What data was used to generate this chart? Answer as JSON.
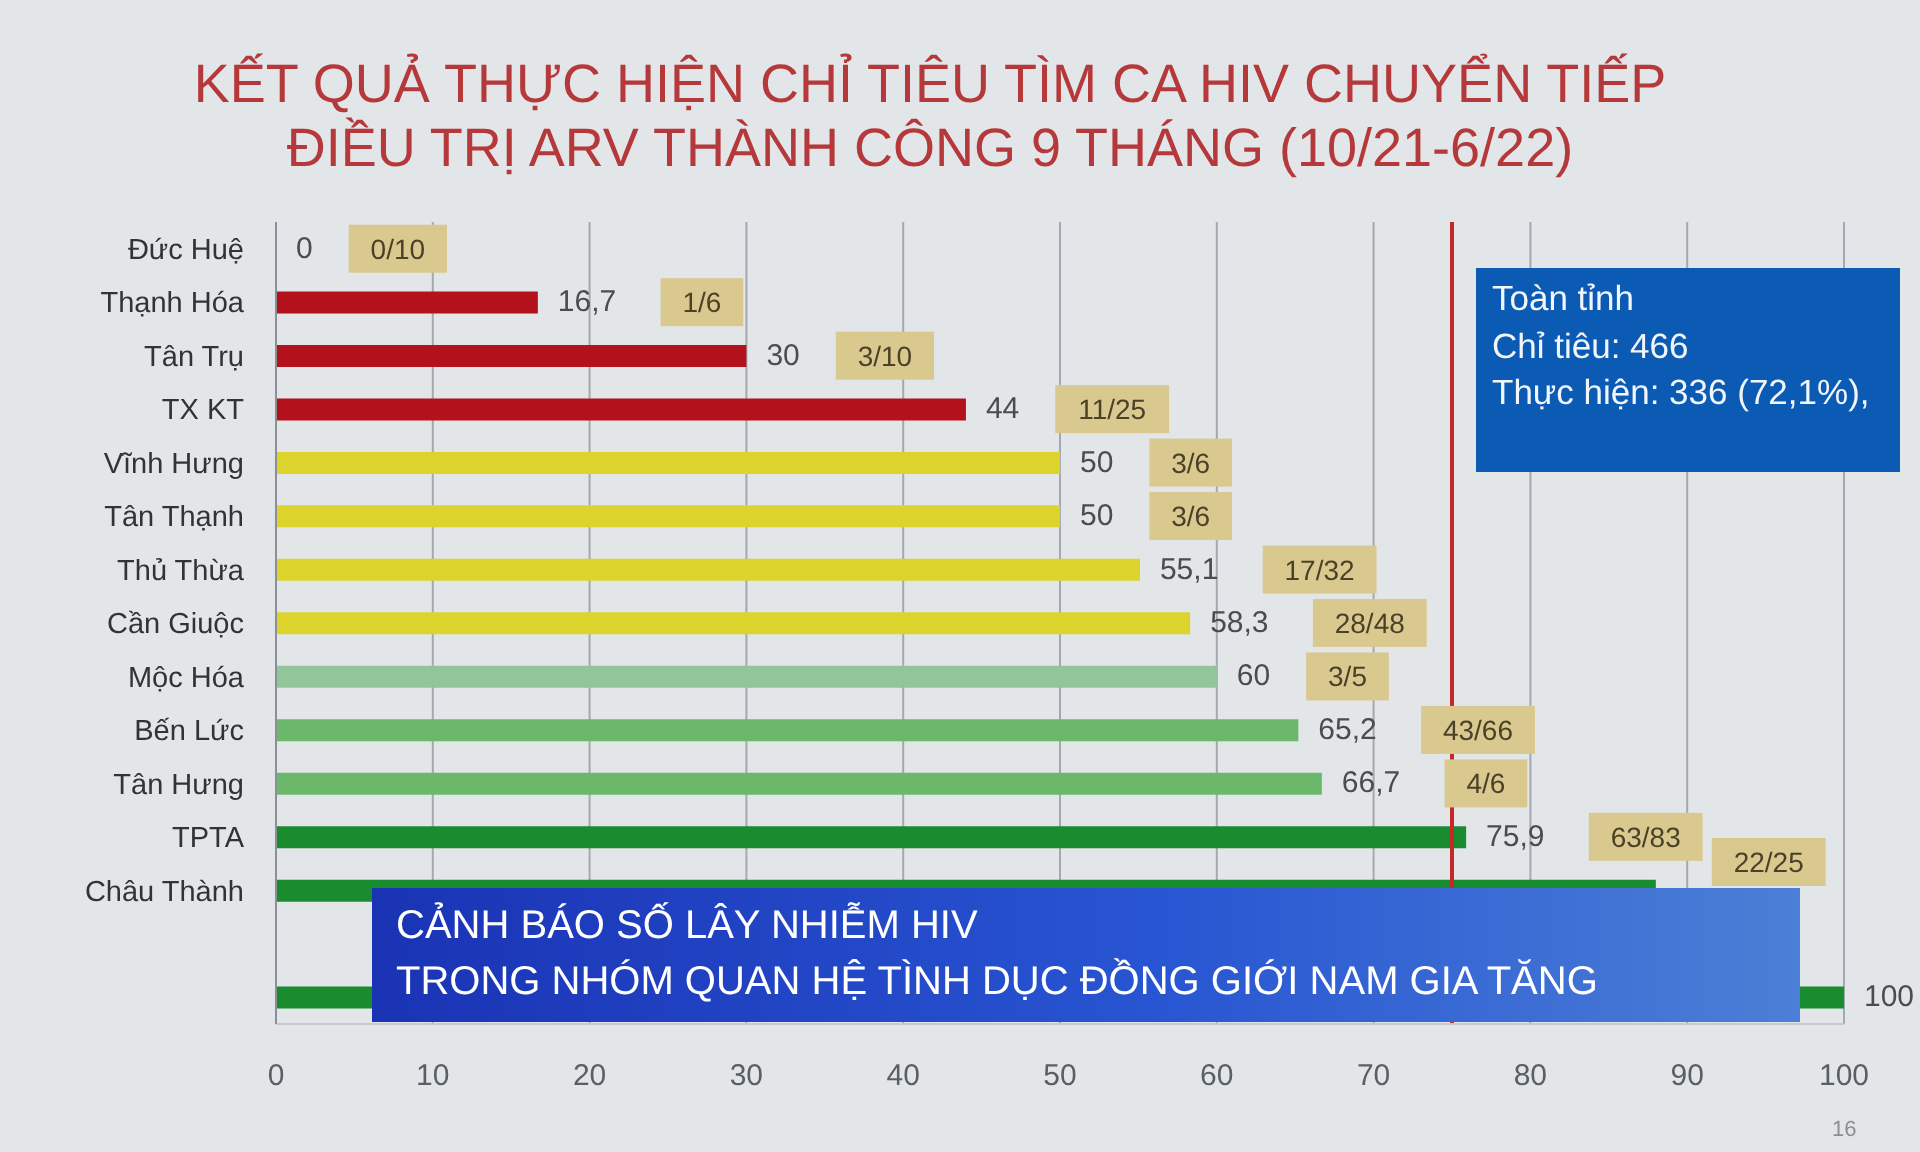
{
  "chart_data": {
    "type": "bar",
    "orientation": "horizontal",
    "title": "KẾT QUẢ THỰC HIỆN CHỈ TIÊU TÌM CA HIV CHUYỂN TIẾP\nĐIỀU TRỊ ARV THÀNH CÔNG 9 THÁNG (10/21-6/22)",
    "categories": [
      "Đức Huệ",
      "Thạnh Hóa",
      "Tân Trụ",
      "TX KT",
      "Vĩnh Hưng",
      "Tân Thạnh",
      "Thủ Thừa",
      "Cần Giuộc",
      "Mộc Hóa",
      "Bến Lức",
      "Tân Hưng",
      "TPTA",
      "Châu Thành",
      null,
      null
    ],
    "values": [
      0,
      16.7,
      30,
      44,
      50,
      50,
      55.1,
      58.3,
      60,
      65.2,
      66.7,
      75.9,
      88,
      null,
      100
    ],
    "colors": [
      "#b3121c",
      "#b3121c",
      "#b3121c",
      "#b3121c",
      "#dcd32c",
      "#dcd32c",
      "#dcd32c",
      "#dcd32c",
      "#93c59a",
      "#6cb86a",
      "#6cb86a",
      "#1a8c30",
      "#1a8c30",
      "#1a8c30",
      "#1a8c30"
    ],
    "value_labels": [
      "0",
      "16,7",
      "30",
      "44",
      "50",
      "50",
      "55,1",
      "58,3",
      "60",
      "65,2",
      "66,7",
      "75,9",
      null,
      null,
      "100"
    ],
    "xlim": [
      0,
      100
    ],
    "xticks": [
      0,
      10,
      20,
      30,
      40,
      50,
      60,
      70,
      80,
      90,
      100
    ],
    "grid": "x",
    "ref_lines": [
      {
        "axis": "x",
        "value": 75,
        "color": "#c62828"
      }
    ],
    "annotations": [
      "Toàn tỉnh\nChỉ tiêu: 466\nThực hiện: 336 (72,1%),",
      "CẢNH BÁO SỐ LÂY NHIỄM HIV\nTRONG NHÓM QUAN HỆ TÌNH DỤC ĐỒNG GIỚI NAM GIA TĂNG",
      "16",
      "0/10",
      "1/6",
      "3/10",
      "11/25",
      "3/6",
      "3/6",
      "17/32",
      "28/48",
      "3/5",
      "43/66",
      "4/6",
      "63/83",
      "22/25"
    ]
  }
}
